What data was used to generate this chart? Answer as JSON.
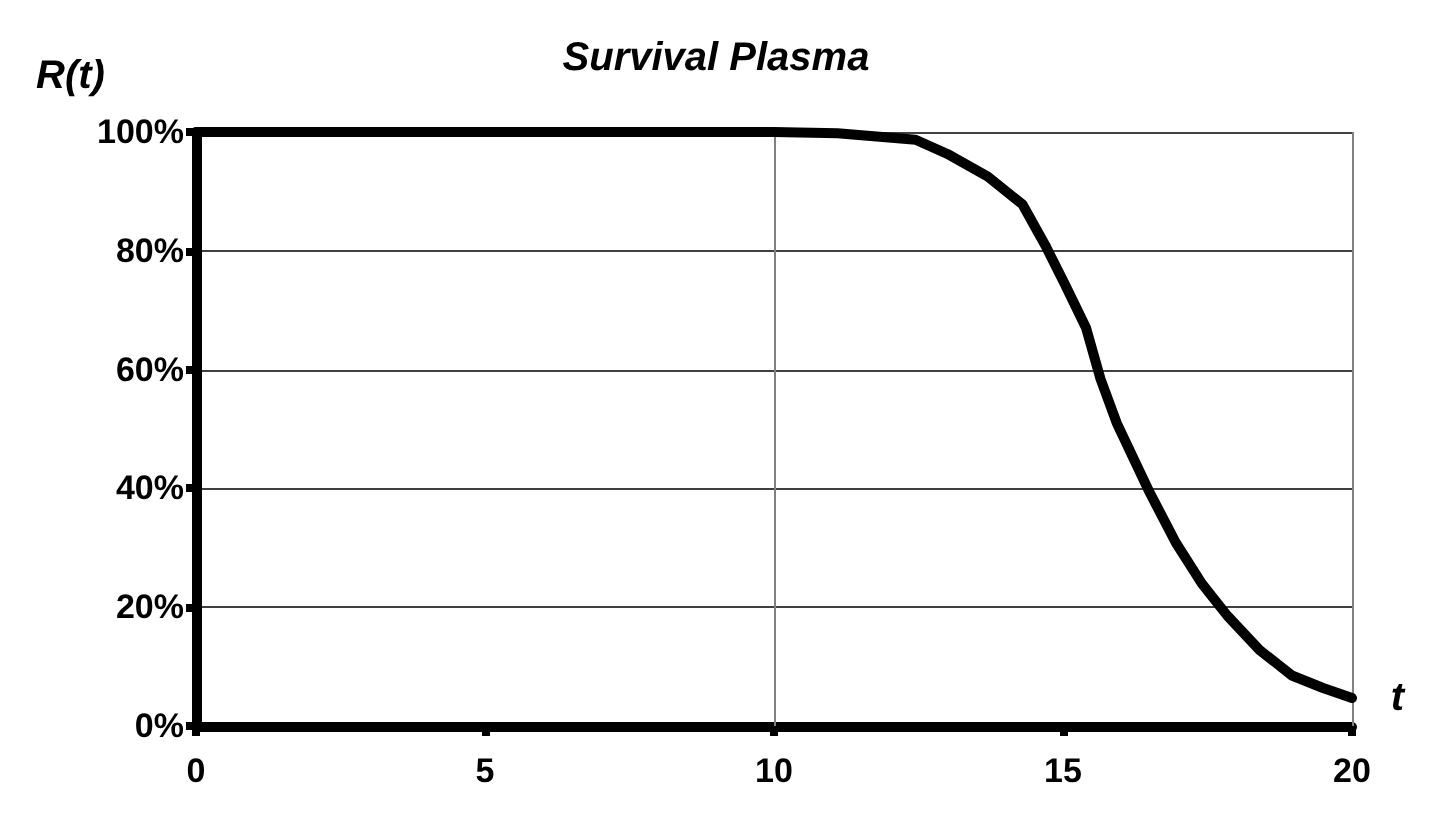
{
  "chart_data": {
    "type": "line",
    "title": "Survival Plasma",
    "xlabel": "t",
    "ylabel": "R(t)",
    "x": [
      0,
      5,
      10,
      11.1,
      12.45,
      13,
      13.7,
      14.3,
      14.7,
      15.03,
      15.4,
      15.65,
      15.93,
      16.5,
      16.95,
      17.4,
      17.84,
      18.4,
      18.96,
      19.5,
      20
    ],
    "series": [
      {
        "color": "#000000",
        "values": [
          100,
          100,
          100,
          99.8,
          98.7,
          96.3,
          92.5,
          87.8,
          80.8,
          74.4,
          67,
          58.4,
          51,
          39.3,
          30.9,
          24,
          18.6,
          12.8,
          8.5,
          6.4,
          4.7
        ]
      }
    ],
    "xlim": [
      0,
      20
    ],
    "xticks": [
      0,
      5,
      10,
      15,
      20
    ],
    "ylim": [
      0,
      100
    ],
    "yticks": [
      {
        "value": 0,
        "label": "0%"
      },
      {
        "value": 20,
        "label": "20%"
      },
      {
        "value": 40,
        "label": "40%"
      },
      {
        "value": 60,
        "label": "60%"
      },
      {
        "value": 80,
        "label": "80%"
      },
      {
        "value": 100,
        "label": "100%"
      }
    ],
    "grid": "y",
    "marker": "none",
    "line_style": "solid",
    "ref_lines": [
      {
        "axis": "x",
        "value": 10,
        "color": "#808080"
      },
      {
        "axis": "x",
        "value": 20,
        "color": "#808080"
      }
    ]
  }
}
